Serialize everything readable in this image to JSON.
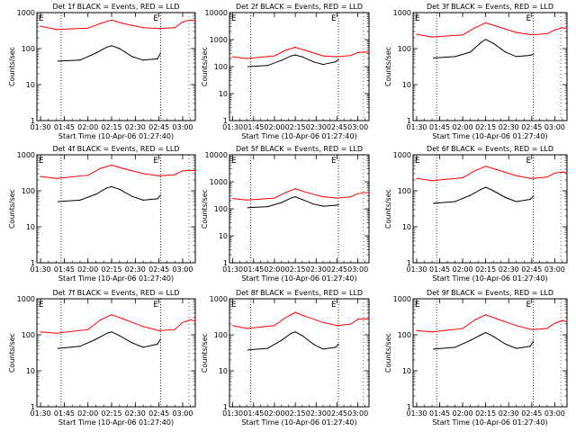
{
  "figure": {
    "x_tick_labels": [
      "01:30",
      "01:45",
      "02:00",
      "02:15",
      "02:30",
      "02:45",
      "03:00"
    ],
    "y_tick_labels": [
      "1",
      "10",
      "100",
      "1000"
    ],
    "ylabel": "Counts/sec",
    "xlabel": "Start Time (10-Apr-06 01:27:40)",
    "flag_label": "E",
    "colors": {
      "events": "#000000",
      "lld": "#ff0000",
      "axes": "#000000"
    }
  },
  "chart_data": [
    {
      "type": "line",
      "title": "Det 1f BLACK = Events, RED = LLD",
      "x_range": [
        "01:30",
        "03:08"
      ],
      "ylim": [
        1,
        1000
      ],
      "log_y": true,
      "series": [
        {
          "name": "Events",
          "color": "#000000",
          "x": [
            "01:41",
            "01:55",
            "02:05",
            "02:12",
            "02:15",
            "02:20",
            "02:28",
            "02:35",
            "02:44",
            "02:46"
          ],
          "values": [
            45,
            48,
            75,
            110,
            120,
            100,
            60,
            48,
            52,
            75
          ]
        },
        {
          "name": "LLD",
          "color": "#ff0000",
          "x": [
            "01:30",
            "01:40",
            "02:00",
            "02:08",
            "02:15",
            "02:22",
            "02:35",
            "02:45",
            "02:55",
            "03:00",
            "03:05",
            "03:08"
          ],
          "values": [
            420,
            340,
            370,
            500,
            620,
            500,
            380,
            360,
            380,
            550,
            620,
            580
          ]
        }
      ]
    },
    {
      "type": "line",
      "title": "Det 2f BLACK = Events, RED = LLD",
      "x_range": [
        "01:30",
        "03:08"
      ],
      "ylim": [
        1,
        10000
      ],
      "log_y": true,
      "series": [
        {
          "name": "Events",
          "color": "#000000",
          "x": [
            "01:41",
            "01:55",
            "02:05",
            "02:12",
            "02:15",
            "02:20",
            "02:28",
            "02:35",
            "02:44",
            "02:46"
          ],
          "values": [
            100,
            110,
            170,
            250,
            270,
            230,
            150,
            120,
            150,
            180
          ]
        },
        {
          "name": "LLD",
          "color": "#ff0000",
          "x": [
            "01:30",
            "01:40",
            "02:00",
            "02:08",
            "02:15",
            "02:22",
            "02:35",
            "02:45",
            "02:55",
            "03:00",
            "03:05",
            "03:08"
          ],
          "values": [
            230,
            200,
            250,
            400,
            520,
            400,
            250,
            230,
            260,
            330,
            350,
            340
          ]
        }
      ]
    },
    {
      "type": "line",
      "title": "Det 3f BLACK = Events, RED = LLD",
      "x_range": [
        "01:30",
        "03:08"
      ],
      "ylim": [
        1,
        1000
      ],
      "log_y": true,
      "series": [
        {
          "name": "Events",
          "color": "#000000",
          "x": [
            "01:41",
            "01:55",
            "02:05",
            "02:12",
            "02:15",
            "02:20",
            "02:28",
            "02:35",
            "02:44",
            "02:46"
          ],
          "values": [
            55,
            60,
            80,
            150,
            180,
            140,
            80,
            60,
            65,
            70
          ]
        },
        {
          "name": "LLD",
          "color": "#ff0000",
          "x": [
            "01:30",
            "01:40",
            "02:00",
            "02:08",
            "02:15",
            "02:22",
            "02:35",
            "02:45",
            "02:55",
            "03:00",
            "03:05",
            "03:08"
          ],
          "values": [
            250,
            210,
            240,
            380,
            520,
            420,
            280,
            240,
            260,
            330,
            380,
            350
          ]
        }
      ]
    },
    {
      "type": "line",
      "title": "Det 4f BLACK = Events, RED = LLD",
      "x_range": [
        "01:30",
        "03:08"
      ],
      "ylim": [
        1,
        1000
      ],
      "log_y": true,
      "series": [
        {
          "name": "Events",
          "color": "#000000",
          "x": [
            "01:41",
            "01:55",
            "02:05",
            "02:12",
            "02:15",
            "02:20",
            "02:28",
            "02:35",
            "02:44",
            "02:46"
          ],
          "values": [
            50,
            55,
            80,
            120,
            130,
            110,
            70,
            55,
            60,
            75
          ]
        },
        {
          "name": "LLD",
          "color": "#ff0000",
          "x": [
            "01:30",
            "01:40",
            "02:00",
            "02:08",
            "02:15",
            "02:22",
            "02:35",
            "02:45",
            "02:55",
            "03:00",
            "03:05",
            "03:08"
          ],
          "values": [
            250,
            220,
            270,
            420,
            520,
            420,
            300,
            260,
            280,
            360,
            370,
            360
          ]
        }
      ]
    },
    {
      "type": "line",
      "title": "Det 5f BLACK = Events, RED = LLD",
      "x_range": [
        "01:30",
        "03:08"
      ],
      "ylim": [
        1,
        10000
      ],
      "log_y": true,
      "series": [
        {
          "name": "Events",
          "color": "#000000",
          "x": [
            "01:41",
            "01:55",
            "02:05",
            "02:12",
            "02:15",
            "02:20",
            "02:28",
            "02:35",
            "02:44",
            "02:46"
          ],
          "values": [
            110,
            120,
            170,
            250,
            280,
            220,
            150,
            125,
            135,
            140
          ]
        },
        {
          "name": "LLD",
          "color": "#ff0000",
          "x": [
            "01:30",
            "01:40",
            "02:00",
            "02:08",
            "02:15",
            "02:22",
            "02:35",
            "02:45",
            "02:55",
            "03:00",
            "03:05",
            "03:08"
          ],
          "values": [
            240,
            210,
            250,
            400,
            550,
            420,
            280,
            250,
            280,
            360,
            400,
            390
          ]
        }
      ]
    },
    {
      "type": "line",
      "title": "Det 6f BLACK = Events, RED = LLD",
      "x_range": [
        "01:30",
        "03:08"
      ],
      "ylim": [
        1,
        1000
      ],
      "log_y": true,
      "series": [
        {
          "name": "Events",
          "color": "#000000",
          "x": [
            "01:41",
            "01:55",
            "02:05",
            "02:12",
            "02:15",
            "02:20",
            "02:28",
            "02:35",
            "02:44",
            "02:46"
          ],
          "values": [
            45,
            50,
            75,
            110,
            125,
            100,
            65,
            50,
            58,
            70
          ]
        },
        {
          "name": "LLD",
          "color": "#ff0000",
          "x": [
            "01:30",
            "01:40",
            "02:00",
            "02:08",
            "02:15",
            "02:22",
            "02:35",
            "02:45",
            "02:55",
            "03:00",
            "03:05",
            "03:08"
          ],
          "values": [
            220,
            190,
            230,
            360,
            480,
            390,
            260,
            220,
            240,
            310,
            330,
            320
          ]
        }
      ]
    },
    {
      "type": "line",
      "title": "Det 7f BLACK = Events, RED = LLD",
      "x_range": [
        "01:30",
        "03:08"
      ],
      "ylim": [
        1,
        1000
      ],
      "log_y": true,
      "series": [
        {
          "name": "Events",
          "color": "#000000",
          "x": [
            "01:41",
            "01:55",
            "02:05",
            "02:12",
            "02:15",
            "02:20",
            "02:28",
            "02:35",
            "02:44",
            "02:46"
          ],
          "values": [
            42,
            48,
            75,
            110,
            120,
            95,
            60,
            45,
            55,
            75
          ]
        },
        {
          "name": "LLD",
          "color": "#ff0000",
          "x": [
            "01:30",
            "01:40",
            "02:00",
            "02:08",
            "02:15",
            "02:22",
            "02:35",
            "02:45",
            "02:55",
            "03:00",
            "03:05",
            "03:08"
          ],
          "values": [
            120,
            110,
            140,
            260,
            360,
            280,
            170,
            130,
            140,
            220,
            260,
            240
          ]
        }
      ]
    },
    {
      "type": "line",
      "title": "Det 8f BLACK = Events, RED = LLD",
      "x_range": [
        "01:30",
        "03:08"
      ],
      "ylim": [
        1,
        1000
      ],
      "log_y": true,
      "series": [
        {
          "name": "Events",
          "color": "#000000",
          "x": [
            "01:41",
            "01:55",
            "02:05",
            "02:12",
            "02:15",
            "02:20",
            "02:28",
            "02:35",
            "02:44",
            "02:46"
          ],
          "values": [
            38,
            42,
            70,
            110,
            120,
            95,
            55,
            40,
            45,
            55
          ]
        },
        {
          "name": "LLD",
          "color": "#ff0000",
          "x": [
            "01:30",
            "01:40",
            "02:00",
            "02:08",
            "02:15",
            "02:22",
            "02:35",
            "02:45",
            "02:55",
            "03:00",
            "03:05",
            "03:08"
          ],
          "values": [
            180,
            150,
            180,
            300,
            420,
            330,
            220,
            180,
            200,
            270,
            280,
            270
          ]
        }
      ]
    },
    {
      "type": "line",
      "title": "Det 9f BLACK = Events, RED = LLD",
      "x_range": [
        "01:30",
        "03:08"
      ],
      "ylim": [
        1,
        1000
      ],
      "log_y": true,
      "series": [
        {
          "name": "Events",
          "color": "#000000",
          "x": [
            "01:41",
            "01:55",
            "02:05",
            "02:12",
            "02:15",
            "02:20",
            "02:28",
            "02:35",
            "02:44",
            "02:46"
          ],
          "values": [
            40,
            45,
            70,
            100,
            115,
            90,
            55,
            42,
            48,
            65
          ]
        },
        {
          "name": "LLD",
          "color": "#ff0000",
          "x": [
            "01:30",
            "01:40",
            "02:00",
            "02:08",
            "02:15",
            "02:22",
            "02:35",
            "02:45",
            "02:55",
            "03:00",
            "03:05",
            "03:08"
          ],
          "values": [
            130,
            120,
            150,
            260,
            360,
            280,
            180,
            140,
            150,
            210,
            250,
            230
          ]
        }
      ]
    }
  ]
}
